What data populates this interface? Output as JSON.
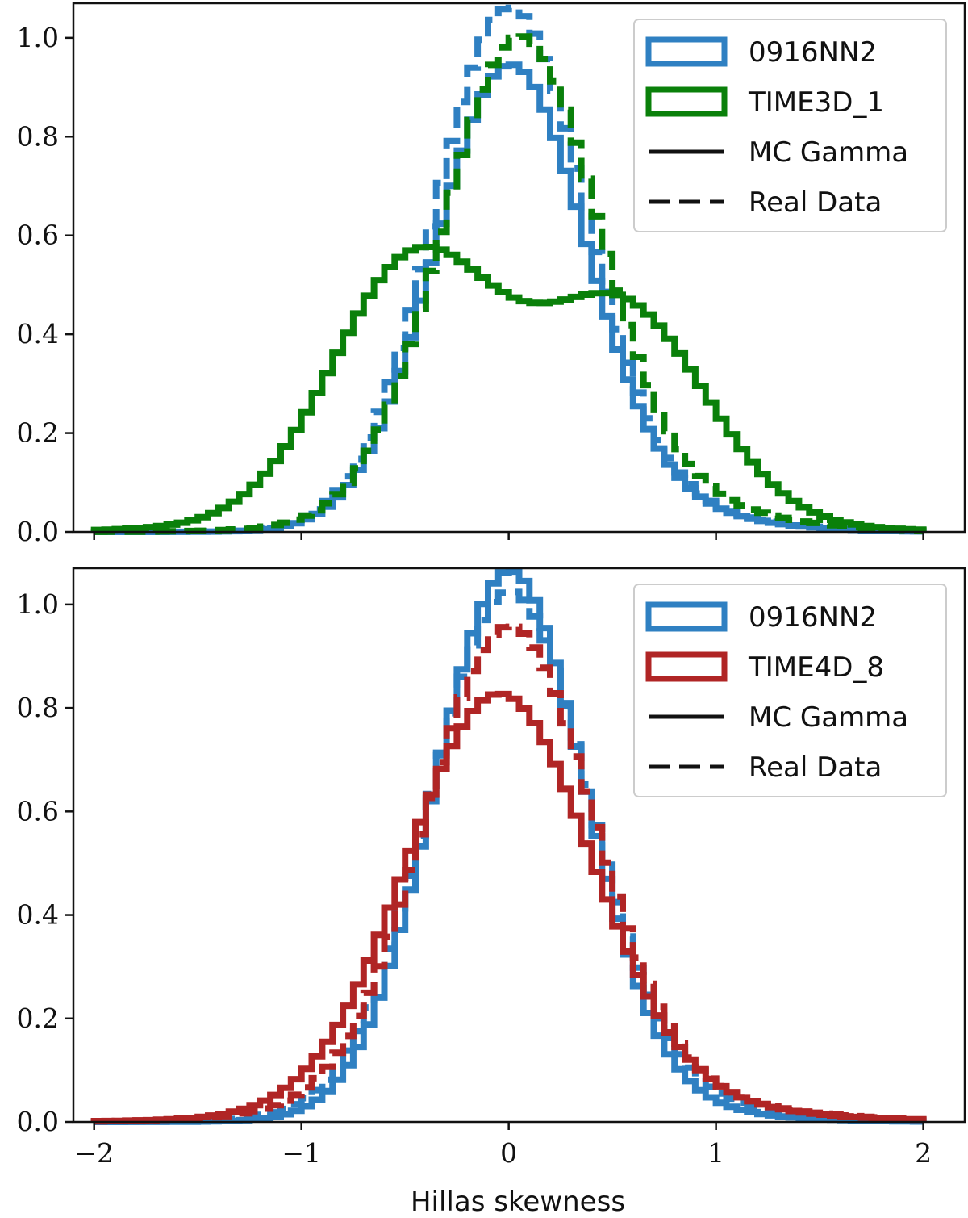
{
  "chart_data": [
    {
      "type": "histogram",
      "panel": "top",
      "xlabel": "",
      "ylabel": "",
      "xlim": [
        -2.1,
        2.2
      ],
      "ylim": [
        0,
        1.07
      ],
      "yticks": [
        0.0,
        0.2,
        0.4,
        0.6,
        0.8,
        1.0
      ],
      "ytick_labels": [
        "0.0",
        "0.2",
        "0.4",
        "0.6",
        "0.8",
        "1.0"
      ],
      "xticks": [
        -2,
        -1,
        0,
        1,
        2
      ],
      "legend": {
        "placement": "top-right",
        "entries": [
          "0916NN2",
          "TIME3D_1",
          "MC Gamma",
          "Real Data"
        ]
      },
      "x_range": [
        -2,
        2
      ],
      "n_bins": 80,
      "series": [
        {
          "name": "0916NN2 MC Gamma",
          "color": "#2f80c2",
          "style": "solid",
          "components": [
            {
              "mu": 0.0,
              "sigma": 0.36,
              "amp": 0.9
            }
          ],
          "tail": {
            "mu": 0.4,
            "sigma": 0.55,
            "amp": 0.06
          }
        },
        {
          "name": "0916NN2 Real Data",
          "color": "#2f80c2",
          "style": "dashed",
          "components": [
            {
              "mu": 0.0,
              "sigma": 0.36,
              "amp": 1.0
            }
          ],
          "tail": {
            "mu": 0.3,
            "sigma": 0.6,
            "amp": 0.07
          }
        },
        {
          "name": "TIME3D_1 MC Gamma",
          "color": "#0a800a",
          "style": "solid",
          "components": [
            {
              "mu": -0.45,
              "sigma": 0.4,
              "amp": 0.52
            },
            {
              "mu": 0.55,
              "sigma": 0.4,
              "amp": 0.42
            }
          ],
          "tail": {
            "mu": 0.0,
            "sigma": 0.9,
            "amp": 0.04
          }
        },
        {
          "name": "TIME3D_1 Real Data",
          "color": "#0a800a",
          "style": "dashed",
          "components": [
            {
              "mu": 0.05,
              "sigma": 0.37,
              "amp": 0.92
            }
          ],
          "tail": {
            "mu": 0.3,
            "sigma": 0.65,
            "amp": 0.09
          }
        }
      ]
    },
    {
      "type": "histogram",
      "panel": "bottom",
      "xlabel": "Hillas skewness",
      "ylabel": "",
      "xlim": [
        -2.1,
        2.2
      ],
      "ylim": [
        0,
        1.07
      ],
      "yticks": [
        0.0,
        0.2,
        0.4,
        0.6,
        0.8,
        1.0
      ],
      "ytick_labels": [
        "0.0",
        "0.2",
        "0.4",
        "0.6",
        "0.8",
        "1.0"
      ],
      "xticks": [
        -2,
        -1,
        0,
        1,
        2
      ],
      "xtick_labels": [
        "−2",
        "−1",
        "0",
        "1",
        "2"
      ],
      "legend": {
        "placement": "top-right",
        "entries": [
          "0916NN2",
          "TIME4D_8",
          "MC Gamma",
          "Real Data"
        ]
      },
      "x_range": [
        -2,
        2
      ],
      "n_bins": 80,
      "series": [
        {
          "name": "0916NN2 MC Gamma",
          "color": "#2f80c2",
          "style": "solid",
          "components": [
            {
              "mu": 0.0,
              "sigma": 0.36,
              "amp": 1.03
            }
          ],
          "tail": {
            "mu": 0.3,
            "sigma": 0.6,
            "amp": 0.04
          }
        },
        {
          "name": "0916NN2 Real Data",
          "color": "#2f80c2",
          "style": "dashed",
          "components": [
            {
              "mu": 0.0,
              "sigma": 0.38,
              "amp": 0.98
            }
          ],
          "tail": {
            "mu": 0.3,
            "sigma": 0.7,
            "amp": 0.05
          }
        },
        {
          "name": "TIME4D_8 MC Gamma",
          "color": "#b02525",
          "style": "solid",
          "components": [
            {
              "mu": -0.05,
              "sigma": 0.44,
              "amp": 0.78
            }
          ],
          "tail": {
            "mu": 0.2,
            "sigma": 0.8,
            "amp": 0.05
          }
        },
        {
          "name": "TIME4D_8 Real Data",
          "color": "#b02525",
          "style": "dashed",
          "components": [
            {
              "mu": 0.0,
              "sigma": 0.4,
              "amp": 0.9
            }
          ],
          "tail": {
            "mu": 0.2,
            "sigma": 0.8,
            "amp": 0.06
          }
        }
      ]
    }
  ]
}
